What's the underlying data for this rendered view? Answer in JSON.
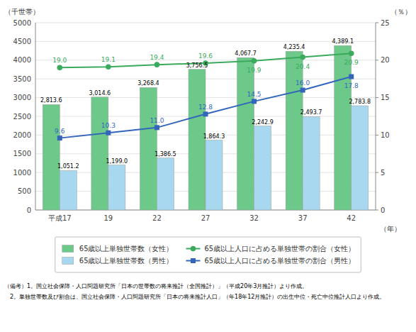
{
  "chart_data": {
    "type": "bar",
    "categories": [
      "平成17",
      "19",
      "22",
      "27",
      "32",
      "37",
      "42"
    ],
    "xlabel": "（年）",
    "ylabel": "（千世帯）",
    "y2label": "（％）",
    "annotations": [
      "（備考）1。国立社会保障・人口問題研究所「日本の世帯数の将来推計（全国推計）」（平成20年3月推計）より作成。",
      "　2。単独世帯数及び割合は、国立社会保障・人口問題研究所「日本の将来推計人口」（年18年12月推計）の出生中位・死亡中位推計人口より作成。"
    ],
    "series": [
      {
        "name": "65歳以上単独世帯数（女性）",
        "type": "bar",
        "color": "#6dc98a",
        "values": [
          2813.6,
          3014.6,
          3268.4,
          3756.5,
          4067.7,
          4235.4,
          4389.1
        ],
        "value_labels": [
          "2,813.6",
          "3,014.6",
          "3,268.4",
          "3,756.5",
          "4,067.7",
          "4,235.4",
          "4,389.1"
        ]
      },
      {
        "name": "65歳以上単独世帯数（男性）",
        "type": "bar",
        "color": "#a8d8f0",
        "values": [
          1051.2,
          1199.0,
          1386.5,
          1864.3,
          2242.9,
          2493.7,
          2783.8
        ],
        "value_labels": [
          "1,051.2",
          "1,199.0",
          "1,386.5",
          "1,864.3",
          "2,242.9",
          "2,493.7",
          "2,783.8"
        ]
      },
      {
        "name": "65歳以上人口に占める単独世帯の割合（女性）",
        "type": "line",
        "axis": "y2",
        "color": "#3aaa5c",
        "marker": "circle",
        "values": [
          19.0,
          19.1,
          19.4,
          19.6,
          19.9,
          20.4,
          20.9
        ],
        "value_labels": [
          "19.0",
          "19.1",
          "19.4",
          "19.6",
          "19.9",
          "20.4",
          "20.9"
        ]
      },
      {
        "name": "65歳以上人口に占める単独世帯の割合（男性）",
        "type": "line",
        "axis": "y2",
        "color": "#3366bb",
        "marker": "square",
        "values": [
          9.6,
          10.3,
          11.0,
          12.8,
          14.5,
          16.0,
          17.8
        ],
        "value_labels": [
          "9.6",
          "10.3",
          "11.0",
          "12.8",
          "14.5",
          "16.0",
          "17.8"
        ]
      }
    ],
    "ylim": [
      0,
      5000
    ],
    "yticks": [
      0,
      500,
      1000,
      1500,
      2000,
      2500,
      3000,
      3500,
      4000,
      4500,
      5000
    ],
    "y2lim": [
      0,
      25
    ],
    "y2ticks": [
      0,
      5,
      10,
      15,
      20,
      25
    ],
    "grid": true,
    "legend": "bottom",
    "data_labels": true
  }
}
